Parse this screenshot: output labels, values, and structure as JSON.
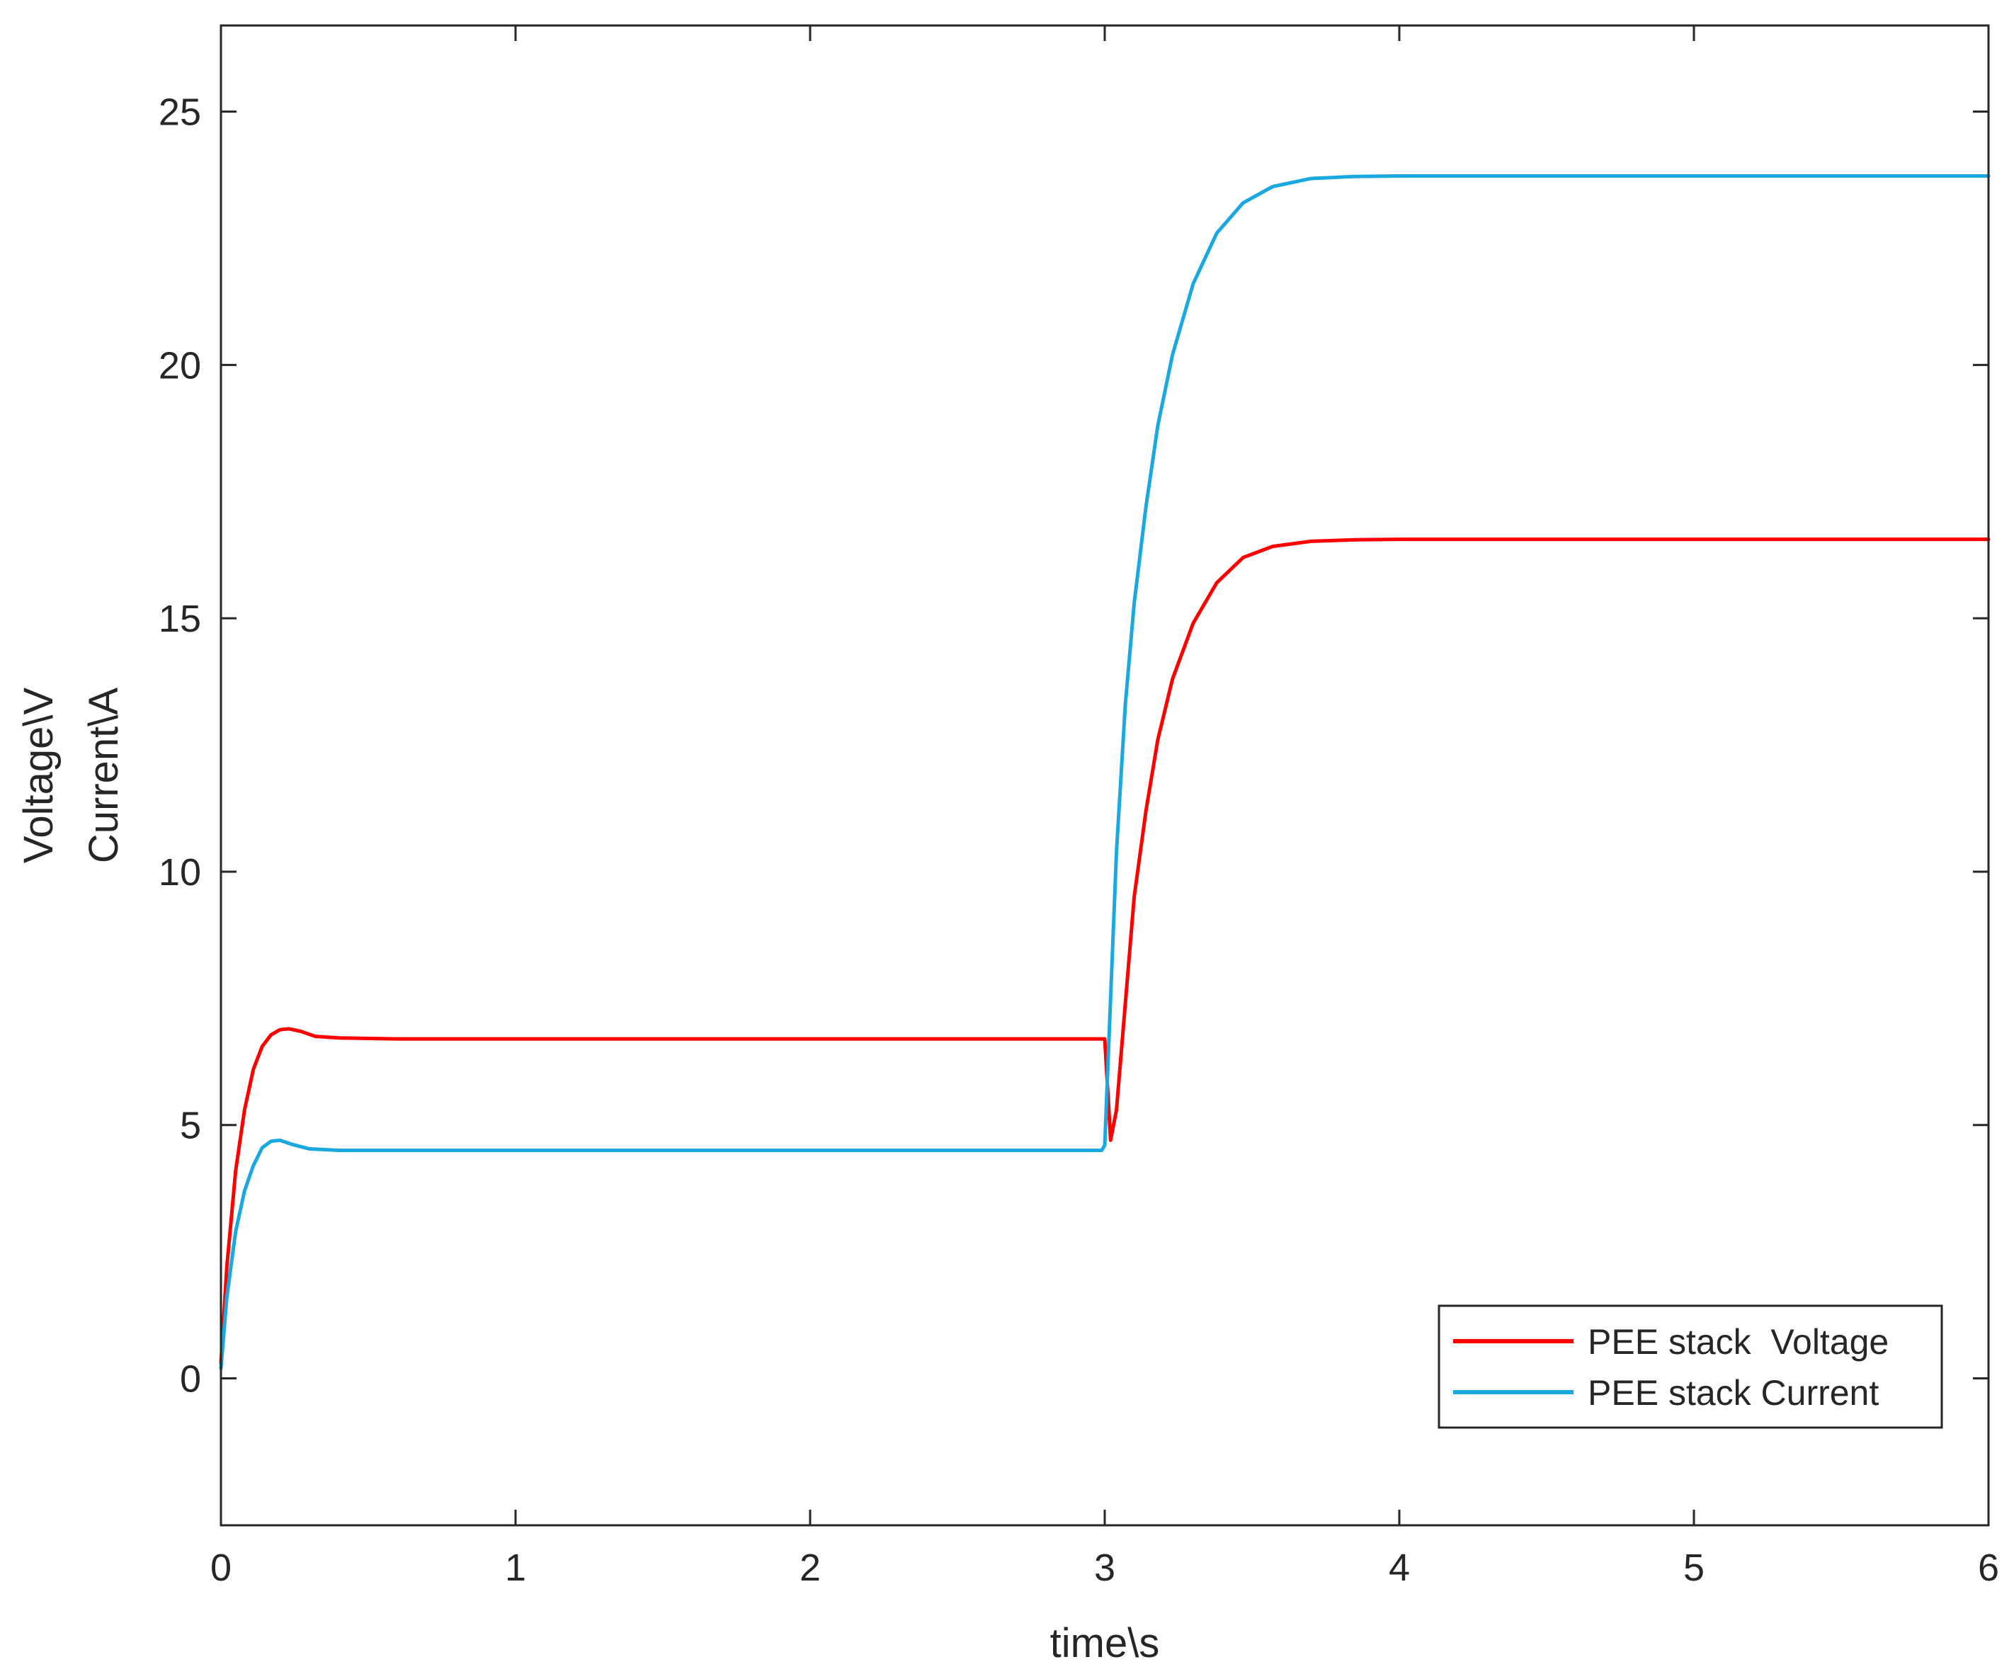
{
  "chart_data": {
    "type": "line",
    "title": "",
    "xlabel": "time\\s",
    "ylabel_lines": [
      "Voltage\\V",
      "Current\\A"
    ],
    "xlim": [
      0,
      6
    ],
    "ylim": [
      -2.9,
      26.7
    ],
    "xticks": [
      0,
      1,
      2,
      3,
      4,
      5,
      6
    ],
    "yticks": [
      0,
      5,
      10,
      15,
      20,
      25
    ],
    "grid": false,
    "legend_position": "bottom-right",
    "series": [
      {
        "name": "PEE stack  Voltage",
        "color": "#ff0000",
        "points": [
          [
            0.0,
            0.3
          ],
          [
            0.02,
            2.2
          ],
          [
            0.05,
            4.1
          ],
          [
            0.08,
            5.3
          ],
          [
            0.11,
            6.1
          ],
          [
            0.14,
            6.55
          ],
          [
            0.17,
            6.78
          ],
          [
            0.2,
            6.88
          ],
          [
            0.23,
            6.9
          ],
          [
            0.27,
            6.85
          ],
          [
            0.32,
            6.75
          ],
          [
            0.4,
            6.72
          ],
          [
            0.6,
            6.7
          ],
          [
            1.0,
            6.7
          ],
          [
            2.0,
            6.7
          ],
          [
            2.99,
            6.7
          ],
          [
            3.0,
            6.7
          ],
          [
            3.02,
            4.7
          ],
          [
            3.04,
            5.3
          ],
          [
            3.07,
            7.4
          ],
          [
            3.1,
            9.5
          ],
          [
            3.14,
            11.2
          ],
          [
            3.18,
            12.6
          ],
          [
            3.23,
            13.8
          ],
          [
            3.3,
            14.9
          ],
          [
            3.38,
            15.7
          ],
          [
            3.47,
            16.2
          ],
          [
            3.57,
            16.42
          ],
          [
            3.7,
            16.52
          ],
          [
            3.85,
            16.55
          ],
          [
            4.0,
            16.56
          ],
          [
            5.0,
            16.56
          ],
          [
            6.0,
            16.56
          ]
        ]
      },
      {
        "name": "PEE stack Current",
        "color": "#1aa8e0",
        "points": [
          [
            0.0,
            0.2
          ],
          [
            0.02,
            1.6
          ],
          [
            0.05,
            2.9
          ],
          [
            0.08,
            3.7
          ],
          [
            0.11,
            4.2
          ],
          [
            0.14,
            4.55
          ],
          [
            0.17,
            4.68
          ],
          [
            0.2,
            4.7
          ],
          [
            0.24,
            4.62
          ],
          [
            0.3,
            4.53
          ],
          [
            0.4,
            4.5
          ],
          [
            0.6,
            4.5
          ],
          [
            1.0,
            4.5
          ],
          [
            2.0,
            4.5
          ],
          [
            2.99,
            4.5
          ],
          [
            3.0,
            4.6
          ],
          [
            3.02,
            7.5
          ],
          [
            3.04,
            10.4
          ],
          [
            3.07,
            13.3
          ],
          [
            3.1,
            15.3
          ],
          [
            3.14,
            17.2
          ],
          [
            3.18,
            18.8
          ],
          [
            3.23,
            20.2
          ],
          [
            3.3,
            21.6
          ],
          [
            3.38,
            22.6
          ],
          [
            3.47,
            23.2
          ],
          [
            3.57,
            23.52
          ],
          [
            3.7,
            23.68
          ],
          [
            3.85,
            23.72
          ],
          [
            4.0,
            23.73
          ],
          [
            5.0,
            23.73
          ],
          [
            6.0,
            23.73
          ]
        ]
      }
    ]
  }
}
